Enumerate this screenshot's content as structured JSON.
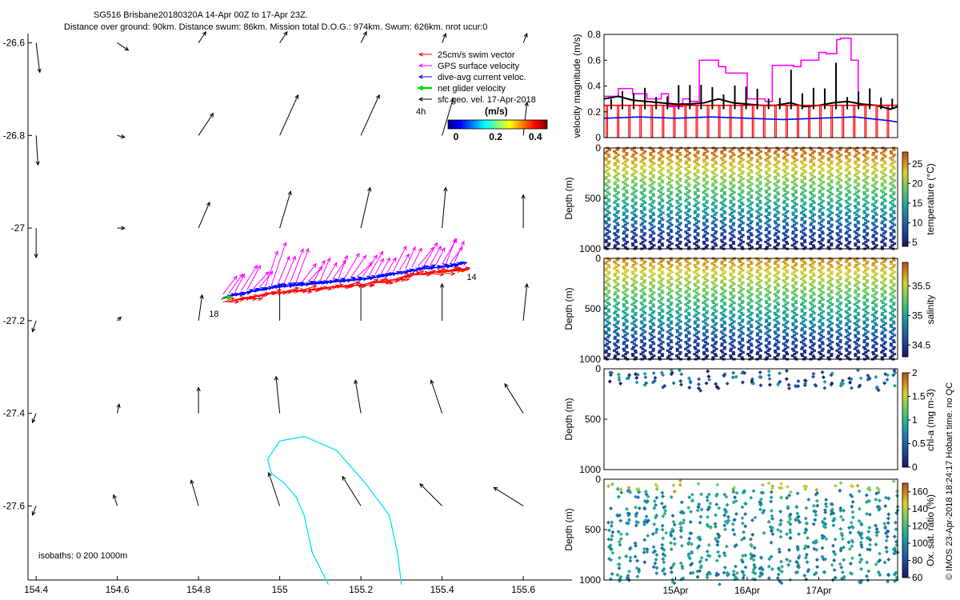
{
  "title": {
    "line1": "SG516 Brisbane20180320A 14-Apr 00Z to 17-Apr 23Z.",
    "line2": "Distance over ground: 90km. Distance swum: 86km. Mission total D.O.G.: 974km. Swum: 626km. nrot ucur:0"
  },
  "side_text": "© IMOS 23-Apr-2018 18:24:17 Hobart time. no QC",
  "colors": {
    "swim": "#ff0000",
    "gps": "#ff00ff",
    "dive_avg": "#0000ff",
    "net": "#00dd00",
    "sfc_geo": "#000000",
    "isobath": "#00e5ee"
  },
  "chart_data": [
    {
      "type": "scatter",
      "name": "map",
      "xlim": [
        154.38,
        155.72
      ],
      "ylim": [
        -27.76,
        -26.58
      ],
      "xticks": [
        "154.4",
        "154.6",
        "154.8",
        "155",
        "155.2",
        "155.4",
        "155.6"
      ],
      "xtick_values": [
        154.4,
        154.6,
        154.8,
        155.0,
        155.2,
        155.4,
        155.6
      ],
      "yticks": [
        "-26.6",
        "-26.8",
        "-27",
        "-27.2",
        "-27.4",
        "-27.6"
      ],
      "ytick_values": [
        -26.6,
        -26.8,
        -27.0,
        -27.2,
        -27.4,
        -27.6
      ],
      "legend": {
        "placement": "top-right",
        "items": [
          {
            "label": "25cm/s swim vector",
            "color": "#ff0000"
          },
          {
            "label": "GPS surface velocity",
            "color": "#ff00ff"
          },
          {
            "label": "dive-avg current veloc.",
            "color": "#0000ff"
          },
          {
            "label": "net glider velocity",
            "color": "#00dd00"
          },
          {
            "label": "sfc geo. vel. 17-Apr-2018",
            "color": "#000000"
          }
        ],
        "time_label": "4h"
      },
      "colorbar": {
        "label": "(m/s)",
        "ticks": [
          "0",
          "0.2",
          "0.4"
        ],
        "tick_values": [
          0,
          0.2,
          0.4
        ],
        "range": [
          0,
          0.5
        ]
      },
      "track_labels": [
        {
          "text": "14",
          "lon": 155.445,
          "lat": -27.105
        },
        {
          "text": "18",
          "lon": 154.81,
          "lat": -27.185
        }
      ],
      "track": {
        "lon": [
          154.86,
          154.92,
          154.98,
          155.04,
          155.1,
          155.16,
          155.22,
          155.28,
          155.34,
          155.4,
          155.44
        ],
        "lat": [
          -27.15,
          -27.14,
          -27.13,
          -27.125,
          -27.12,
          -27.115,
          -27.11,
          -27.1,
          -27.09,
          -27.085,
          -27.08
        ]
      },
      "isobath_label": "isobaths: 0   200  1000m",
      "isobath_line": {
        "lon": [
          155.12,
          155.08,
          155.06,
          155.04,
          155.01,
          154.98,
          154.97,
          155.0,
          155.06,
          155.14,
          155.21,
          155.27,
          155.29,
          155.3
        ],
        "lat": [
          -27.77,
          -27.7,
          -27.62,
          -27.58,
          -27.55,
          -27.53,
          -27.5,
          -27.46,
          -27.45,
          -27.48,
          -27.55,
          -27.62,
          -27.7,
          -27.77
        ]
      },
      "sfc_vectors": [
        {
          "lon": 154.4,
          "lat": -26.6,
          "u": 0.02,
          "v": -0.16
        },
        {
          "lon": 154.6,
          "lat": -26.6,
          "u": 0.06,
          "v": -0.04
        },
        {
          "lon": 154.8,
          "lat": -26.6,
          "u": 0.04,
          "v": 0.06
        },
        {
          "lon": 155.0,
          "lat": -26.6,
          "u": 0.04,
          "v": 0.06
        },
        {
          "lon": 155.2,
          "lat": -26.6,
          "u": 0.03,
          "v": 0.06
        },
        {
          "lon": 155.4,
          "lat": -26.6,
          "u": 0.02,
          "v": 0.05
        },
        {
          "lon": 155.6,
          "lat": -26.6,
          "u": 0.02,
          "v": 0.05
        },
        {
          "lon": 154.4,
          "lat": -26.8,
          "u": 0.01,
          "v": -0.16
        },
        {
          "lon": 154.6,
          "lat": -26.8,
          "u": 0.04,
          "v": -0.01
        },
        {
          "lon": 154.8,
          "lat": -26.8,
          "u": 0.08,
          "v": 0.12
        },
        {
          "lon": 155.0,
          "lat": -26.8,
          "u": 0.1,
          "v": 0.22
        },
        {
          "lon": 155.2,
          "lat": -26.8,
          "u": 0.1,
          "v": 0.22
        },
        {
          "lon": 155.4,
          "lat": -26.8,
          "u": 0.06,
          "v": 0.2
        },
        {
          "lon": 155.6,
          "lat": -26.8,
          "u": 0.02,
          "v": 0.18
        },
        {
          "lon": 154.4,
          "lat": -27.0,
          "u": 0.0,
          "v": -0.16
        },
        {
          "lon": 154.6,
          "lat": -27.0,
          "u": 0.04,
          "v": 0.0
        },
        {
          "lon": 154.8,
          "lat": -27.0,
          "u": 0.06,
          "v": 0.14
        },
        {
          "lon": 155.0,
          "lat": -27.0,
          "u": 0.06,
          "v": 0.2
        },
        {
          "lon": 155.2,
          "lat": -27.0,
          "u": 0.05,
          "v": 0.22
        },
        {
          "lon": 155.4,
          "lat": -27.0,
          "u": 0.02,
          "v": 0.22
        },
        {
          "lon": 155.6,
          "lat": -27.0,
          "u": 0.0,
          "v": 0.18
        },
        {
          "lon": 154.4,
          "lat": -27.2,
          "u": -0.02,
          "v": -0.06
        },
        {
          "lon": 154.6,
          "lat": -27.2,
          "u": 0.02,
          "v": 0.02
        },
        {
          "lon": 154.8,
          "lat": -27.2,
          "u": 0.02,
          "v": 0.14
        },
        {
          "lon": 155.0,
          "lat": -27.2,
          "u": 0.0,
          "v": 0.2
        },
        {
          "lon": 155.2,
          "lat": -27.2,
          "u": 0.0,
          "v": 0.2
        },
        {
          "lon": 155.4,
          "lat": -27.2,
          "u": 0.0,
          "v": 0.2
        },
        {
          "lon": 155.6,
          "lat": -27.2,
          "u": 0.02,
          "v": 0.2
        },
        {
          "lon": 154.4,
          "lat": -27.4,
          "u": -0.02,
          "v": -0.05
        },
        {
          "lon": 154.6,
          "lat": -27.4,
          "u": 0.01,
          "v": 0.05
        },
        {
          "lon": 154.8,
          "lat": -27.4,
          "u": 0.0,
          "v": 0.14
        },
        {
          "lon": 155.0,
          "lat": -27.4,
          "u": -0.02,
          "v": 0.2
        },
        {
          "lon": 155.2,
          "lat": -27.4,
          "u": -0.03,
          "v": 0.18
        },
        {
          "lon": 155.4,
          "lat": -27.4,
          "u": -0.06,
          "v": 0.18
        },
        {
          "lon": 155.6,
          "lat": -27.4,
          "u": -0.1,
          "v": 0.16
        },
        {
          "lon": 154.4,
          "lat": -27.6,
          "u": -0.02,
          "v": -0.05
        },
        {
          "lon": 154.6,
          "lat": -27.6,
          "u": -0.02,
          "v": 0.06
        },
        {
          "lon": 154.8,
          "lat": -27.6,
          "u": -0.04,
          "v": 0.14
        },
        {
          "lon": 155.0,
          "lat": -27.6,
          "u": -0.06,
          "v": 0.18
        },
        {
          "lon": 155.2,
          "lat": -27.6,
          "u": -0.1,
          "v": 0.16
        },
        {
          "lon": 155.4,
          "lat": -27.6,
          "u": -0.12,
          "v": 0.12
        },
        {
          "lon": 155.6,
          "lat": -27.6,
          "u": -0.16,
          "v": 0.1
        }
      ]
    },
    {
      "type": "line",
      "name": "velocity",
      "ylabel": "velocity magnitude (m/s)",
      "xlim": [
        0,
        4.1
      ],
      "ylim": [
        0,
        0.8
      ],
      "yticks": [
        "0",
        "0.2",
        "0.4",
        "0.6",
        "0.8"
      ],
      "ytick_values": [
        0,
        0.2,
        0.4,
        0.6,
        0.8
      ],
      "series": [
        {
          "color": "#ff00ff",
          "x": [
            0,
            0.2,
            0.2,
            0.4,
            0.4,
            0.6,
            0.6,
            0.8,
            0.8,
            0.9,
            0.9,
            1.1,
            1.1,
            1.2,
            1.2,
            1.33,
            1.33,
            1.6,
            1.6,
            1.7,
            1.7,
            2.0,
            2.0,
            2.25,
            2.25,
            2.35,
            2.35,
            2.65,
            2.65,
            2.75,
            2.75,
            3.0,
            3.0,
            3.1,
            3.1,
            3.25,
            3.25,
            3.3,
            3.3,
            3.45,
            3.45,
            3.55,
            3.55,
            4.1
          ],
          "y": [
            0.32,
            0.32,
            0.38,
            0.38,
            0.34,
            0.34,
            0.3,
            0.3,
            0.34,
            0.34,
            0.24,
            0.24,
            0.3,
            0.3,
            0.28,
            0.28,
            0.6,
            0.6,
            0.55,
            0.55,
            0.5,
            0.5,
            0.3,
            0.3,
            0.28,
            0.28,
            0.56,
            0.56,
            0.55,
            0.55,
            0.6,
            0.6,
            0.66,
            0.66,
            0.65,
            0.65,
            0.76,
            0.76,
            0.77,
            0.77,
            0.6,
            0.6,
            0.25,
            0.25
          ]
        },
        {
          "color": "#000000",
          "x": [
            0,
            0.2,
            0.4,
            0.6,
            0.8,
            1.0,
            1.2,
            1.4,
            1.6,
            1.8,
            2.0,
            2.2,
            2.4,
            2.6,
            2.8,
            3.0,
            3.2,
            3.4,
            3.6,
            3.8,
            4.0,
            4.1
          ],
          "y": [
            0.3,
            0.32,
            0.29,
            0.28,
            0.27,
            0.26,
            0.26,
            0.27,
            0.3,
            0.27,
            0.26,
            0.25,
            0.25,
            0.27,
            0.24,
            0.25,
            0.27,
            0.28,
            0.26,
            0.25,
            0.22,
            0.24
          ]
        },
        {
          "color": "#0000ff",
          "x": [
            0,
            0.5,
            1.0,
            1.5,
            2.0,
            2.5,
            3.0,
            3.5,
            4.0,
            4.1
          ],
          "y": [
            0.15,
            0.16,
            0.15,
            0.16,
            0.15,
            0.14,
            0.15,
            0.16,
            0.13,
            0.12
          ]
        },
        {
          "color": "#ff0000",
          "x": [
            0,
            4.1
          ],
          "y": [
            0.25,
            0.25
          ]
        }
      ]
    },
    {
      "type": "scatter",
      "name": "temperature",
      "ylabel": "Depth (m)",
      "ylim": [
        1000,
        0
      ],
      "yticks": [
        "0",
        "500",
        "1000"
      ],
      "ytick_values": [
        0,
        500,
        1000
      ],
      "colorbar": {
        "label": "temperature (°C)",
        "ticks": [
          "5",
          "10",
          "15",
          "20",
          "25"
        ],
        "tick_values": [
          5,
          10,
          15,
          20,
          25
        ],
        "range": [
          4,
          28
        ]
      }
    },
    {
      "type": "scatter",
      "name": "salinity",
      "ylabel": "Depth (m)",
      "ylim": [
        1000,
        0
      ],
      "yticks": [
        "0",
        "500",
        "1000"
      ],
      "ytick_values": [
        0,
        500,
        1000
      ],
      "colorbar": {
        "label": "salinity",
        "ticks": [
          "34.5",
          "35",
          "35.5"
        ],
        "tick_values": [
          34.5,
          35,
          35.5
        ],
        "range": [
          34.3,
          35.9
        ]
      }
    },
    {
      "type": "scatter",
      "name": "chla",
      "ylabel": "Depth (m)",
      "ylim": [
        1000,
        0
      ],
      "yticks": [
        "0",
        "500",
        "1000"
      ],
      "ytick_values": [
        0,
        500,
        1000
      ],
      "colorbar": {
        "label": "chl-a (mg m-3)",
        "ticks": [
          "0",
          "0.5",
          "1",
          "1.5",
          "2"
        ],
        "tick_values": [
          0,
          0.5,
          1,
          1.5,
          2
        ],
        "range": [
          0,
          2
        ]
      }
    },
    {
      "type": "scatter",
      "name": "oxygen",
      "ylabel": "Depth (m)",
      "ylim": [
        1000,
        0
      ],
      "yticks": [
        "0",
        "500",
        "1000"
      ],
      "ytick_values": [
        0,
        500,
        1000
      ],
      "xticks": [
        "15Apr",
        "16Apr",
        "17Apr"
      ],
      "xtick_values": [
        1,
        2,
        3
      ],
      "xlim": [
        0,
        4.1
      ],
      "colorbar": {
        "label": "Ox. sat. ratio (%)",
        "ticks": [
          "60",
          "80",
          "100",
          "120",
          "140",
          "160"
        ],
        "tick_values": [
          60,
          80,
          100,
          120,
          140,
          160
        ],
        "range": [
          60,
          170
        ]
      }
    }
  ]
}
